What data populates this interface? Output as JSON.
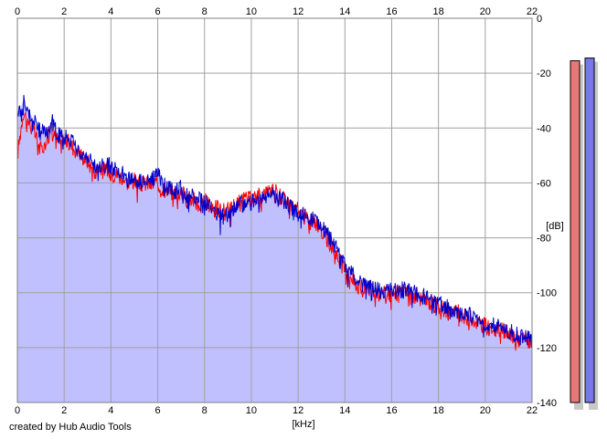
{
  "chart_data": {
    "type": "area",
    "xlabel": "[kHz]",
    "ylabel": "[dB]",
    "xlim": [
      0,
      22
    ],
    "ylim": [
      -140,
      0
    ],
    "x_ticks": [
      0,
      2,
      4,
      6,
      8,
      10,
      12,
      14,
      16,
      18,
      20,
      22
    ],
    "y_ticks": [
      -20,
      -40,
      -60,
      -80,
      -100,
      -120,
      -140
    ],
    "y_tick_zero": "0",
    "grid": true,
    "fill_color": "#c0c0ff",
    "series": [
      {
        "color": "#ff0000",
        "points": [
          [
            0,
            -50
          ],
          [
            0.25,
            -34
          ],
          [
            0.5,
            -38
          ],
          [
            0.75,
            -42
          ],
          [
            1,
            -48
          ],
          [
            1.25,
            -44
          ],
          [
            1.5,
            -40
          ],
          [
            1.75,
            -45
          ],
          [
            2,
            -44
          ],
          [
            2.25,
            -46
          ],
          [
            2.5,
            -48
          ],
          [
            2.75,
            -50
          ],
          [
            3,
            -52
          ],
          [
            3.25,
            -56
          ],
          [
            3.5,
            -54
          ],
          [
            3.75,
            -55
          ],
          [
            4,
            -56
          ],
          [
            4.25,
            -57
          ],
          [
            4.5,
            -58
          ],
          [
            4.75,
            -60
          ],
          [
            5,
            -59
          ],
          [
            5.25,
            -61
          ],
          [
            5.5,
            -60
          ],
          [
            5.75,
            -61
          ],
          [
            6,
            -60
          ],
          [
            6.25,
            -62
          ],
          [
            6.5,
            -63
          ],
          [
            6.75,
            -64
          ],
          [
            7,
            -63
          ],
          [
            7.25,
            -66
          ],
          [
            7.5,
            -66
          ],
          [
            7.75,
            -68
          ],
          [
            8,
            -67
          ],
          [
            8.25,
            -68
          ],
          [
            8.5,
            -69
          ],
          [
            8.75,
            -70
          ],
          [
            9,
            -70
          ],
          [
            9.25,
            -68
          ],
          [
            9.5,
            -67
          ],
          [
            9.75,
            -66
          ],
          [
            10,
            -66
          ],
          [
            10.25,
            -65
          ],
          [
            10.5,
            -64
          ],
          [
            10.75,
            -63
          ],
          [
            11,
            -63
          ],
          [
            11.25,
            -65
          ],
          [
            11.5,
            -66
          ],
          [
            11.75,
            -68
          ],
          [
            12,
            -70
          ],
          [
            12.25,
            -72
          ],
          [
            12.5,
            -74
          ],
          [
            12.75,
            -75
          ],
          [
            13,
            -77
          ],
          [
            13.25,
            -80
          ],
          [
            13.5,
            -84
          ],
          [
            13.75,
            -88
          ],
          [
            14,
            -92
          ],
          [
            14.25,
            -95
          ],
          [
            14.5,
            -97
          ],
          [
            14.75,
            -99
          ],
          [
            15,
            -98
          ],
          [
            15.25,
            -99
          ],
          [
            15.5,
            -100
          ],
          [
            15.75,
            -101
          ],
          [
            16,
            -100
          ],
          [
            16.25,
            -100
          ],
          [
            16.5,
            -99
          ],
          [
            16.75,
            -100
          ],
          [
            17,
            -101
          ],
          [
            17.25,
            -102
          ],
          [
            17.5,
            -103
          ],
          [
            17.75,
            -104
          ],
          [
            18,
            -105
          ],
          [
            18.25,
            -106
          ],
          [
            18.5,
            -107
          ],
          [
            18.75,
            -107
          ],
          [
            19,
            -108
          ],
          [
            19.25,
            -109
          ],
          [
            19.5,
            -110
          ],
          [
            19.75,
            -111
          ],
          [
            20,
            -112
          ],
          [
            20.25,
            -113
          ],
          [
            20.5,
            -113
          ],
          [
            20.75,
            -114
          ],
          [
            21,
            -115
          ],
          [
            21.25,
            -116
          ],
          [
            21.5,
            -117
          ],
          [
            21.75,
            -117
          ],
          [
            22,
            -118
          ]
        ]
      },
      {
        "color": "#0000cc",
        "points": [
          [
            0,
            -36
          ],
          [
            0.25,
            -30
          ],
          [
            0.5,
            -34
          ],
          [
            0.75,
            -38
          ],
          [
            1,
            -42
          ],
          [
            1.25,
            -40
          ],
          [
            1.5,
            -38
          ],
          [
            1.75,
            -43
          ],
          [
            2,
            -42
          ],
          [
            2.25,
            -44
          ],
          [
            2.5,
            -47
          ],
          [
            2.75,
            -49
          ],
          [
            3,
            -50
          ],
          [
            3.25,
            -54
          ],
          [
            3.5,
            -53
          ],
          [
            3.75,
            -53
          ],
          [
            4,
            -54
          ],
          [
            4.25,
            -56
          ],
          [
            4.5,
            -57
          ],
          [
            4.75,
            -59
          ],
          [
            5,
            -58
          ],
          [
            5.25,
            -60
          ],
          [
            5.5,
            -58
          ],
          [
            5.75,
            -59
          ],
          [
            6,
            -57
          ],
          [
            6.25,
            -61
          ],
          [
            6.5,
            -62
          ],
          [
            6.75,
            -63
          ],
          [
            7,
            -62
          ],
          [
            7.25,
            -65
          ],
          [
            7.5,
            -65
          ],
          [
            7.75,
            -66
          ],
          [
            8,
            -67
          ],
          [
            8.25,
            -68
          ],
          [
            8.5,
            -71
          ],
          [
            8.75,
            -72
          ],
          [
            9,
            -72
          ],
          [
            9.25,
            -70
          ],
          [
            9.5,
            -68
          ],
          [
            9.75,
            -67
          ],
          [
            10,
            -67
          ],
          [
            10.25,
            -66
          ],
          [
            10.5,
            -65
          ],
          [
            10.75,
            -64
          ],
          [
            11,
            -64
          ],
          [
            11.25,
            -66
          ],
          [
            11.5,
            -67
          ],
          [
            11.75,
            -69
          ],
          [
            12,
            -70
          ],
          [
            12.25,
            -72
          ],
          [
            12.5,
            -73
          ],
          [
            12.75,
            -74
          ],
          [
            13,
            -76
          ],
          [
            13.25,
            -79
          ],
          [
            13.5,
            -82
          ],
          [
            13.75,
            -86
          ],
          [
            14,
            -90
          ],
          [
            14.25,
            -93
          ],
          [
            14.5,
            -95
          ],
          [
            14.75,
            -97
          ],
          [
            15,
            -97
          ],
          [
            15.25,
            -98
          ],
          [
            15.5,
            -99
          ],
          [
            15.75,
            -100
          ],
          [
            16,
            -99
          ],
          [
            16.25,
            -99
          ],
          [
            16.5,
            -99
          ],
          [
            16.75,
            -99
          ],
          [
            17,
            -100
          ],
          [
            17.25,
            -101
          ],
          [
            17.5,
            -102
          ],
          [
            17.75,
            -103
          ],
          [
            18,
            -104
          ],
          [
            18.25,
            -105
          ],
          [
            18.5,
            -106
          ],
          [
            18.75,
            -106
          ],
          [
            19,
            -107
          ],
          [
            19.25,
            -108
          ],
          [
            19.5,
            -109
          ],
          [
            19.75,
            -110
          ],
          [
            20,
            -111
          ],
          [
            20.25,
            -111
          ],
          [
            20.5,
            -112
          ],
          [
            20.75,
            -113
          ],
          [
            21,
            -114
          ],
          [
            21.25,
            -115
          ],
          [
            21.5,
            -116
          ],
          [
            21.75,
            -116
          ],
          [
            22,
            -117
          ]
        ]
      }
    ],
    "level_meters": [
      {
        "color": "#e87878",
        "level_db": -15.5
      },
      {
        "color": "#7878e8",
        "level_db": -14.5
      }
    ]
  },
  "footer": {
    "credit": "created by Hub Audio Tools"
  }
}
